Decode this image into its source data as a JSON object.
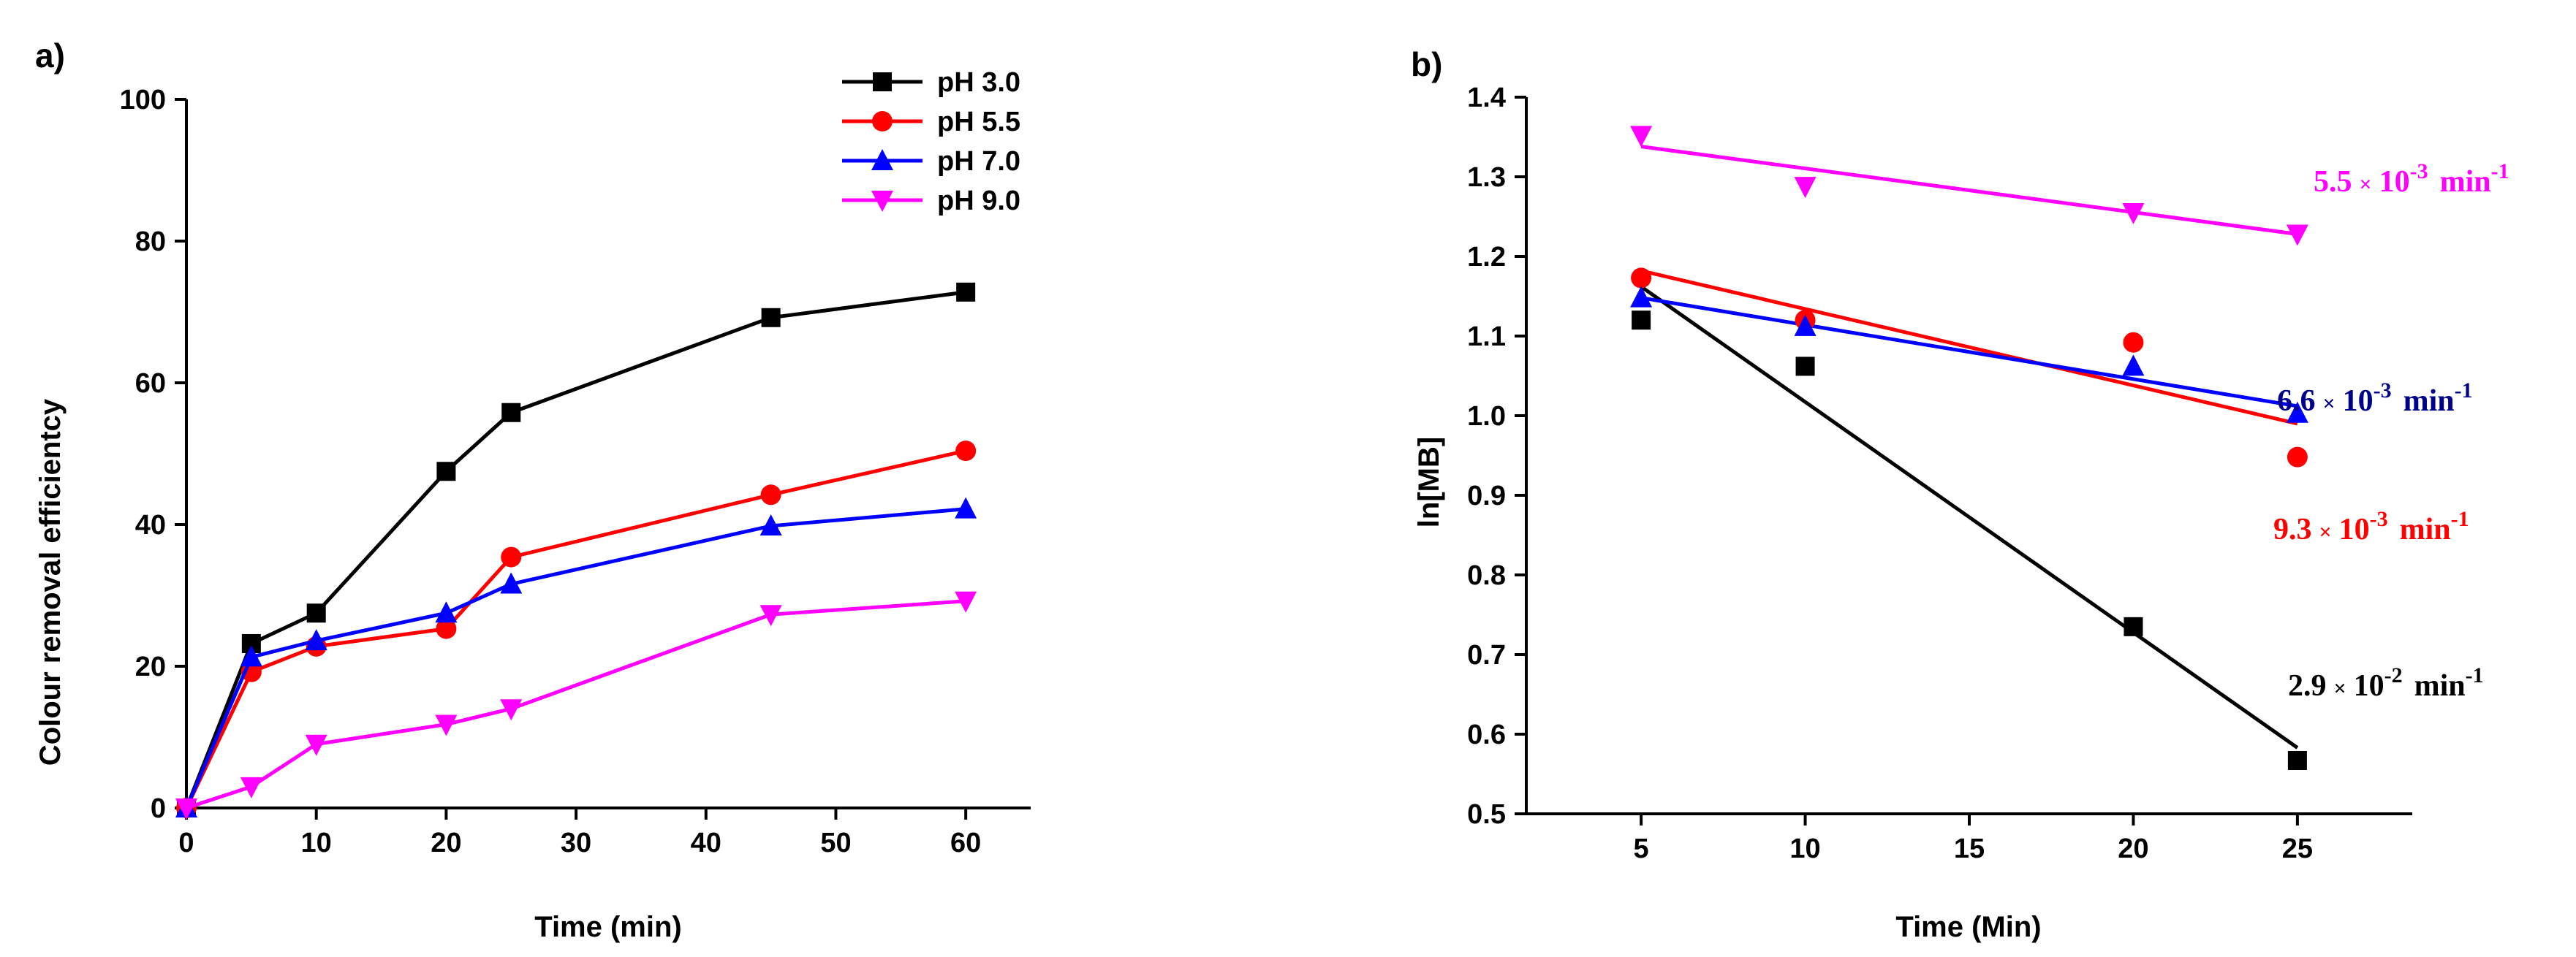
{
  "chart_data": [
    {
      "panel_label": "a)",
      "type": "line",
      "xlabel": "Time (min)",
      "ylabel": "Colour removal efficientcy",
      "xlim": [
        0,
        65
      ],
      "ylim": [
        0,
        100
      ],
      "xticks": [
        0,
        10,
        20,
        30,
        40,
        50,
        60
      ],
      "yticks": [
        0,
        20,
        40,
        60,
        80,
        100
      ],
      "legend_position": "top-right",
      "series": [
        {
          "name": "pH 3.0",
          "color": "#000000",
          "marker": "square",
          "x": [
            0,
            5,
            10,
            20,
            25,
            45,
            60
          ],
          "y": [
            0,
            23.2,
            27.5,
            47.5,
            55.8,
            69.2,
            72.8
          ]
        },
        {
          "name": "pH 5.5",
          "color": "#ff0000",
          "marker": "circle",
          "x": [
            0,
            5,
            10,
            20,
            25,
            45,
            60
          ],
          "y": [
            0,
            19.2,
            22.8,
            25.3,
            35.4,
            44.2,
            50.4
          ]
        },
        {
          "name": "pH 7.0",
          "color": "#0000ff",
          "marker": "triangle-up",
          "x": [
            0,
            5,
            10,
            20,
            25,
            45,
            60
          ],
          "y": [
            0,
            21.3,
            23.6,
            27.5,
            31.6,
            39.8,
            42.2
          ]
        },
        {
          "name": "pH 9.0",
          "color": "#ff00ff",
          "marker": "triangle-down",
          "x": [
            0,
            5,
            10,
            20,
            25,
            45,
            60
          ],
          "y": [
            0,
            3.0,
            9.0,
            11.8,
            14.0,
            27.3,
            29.2
          ]
        }
      ]
    },
    {
      "panel_label": "b)",
      "type": "scatter",
      "xlabel": "Time (Min)",
      "ylabel": "ln[MB]",
      "xlim": [
        1.5,
        28.5
      ],
      "ylim": [
        0.5,
        1.4
      ],
      "xticks": [
        5,
        10,
        15,
        20,
        25
      ],
      "yticks": [
        0.5,
        0.6,
        0.7,
        0.8,
        0.9,
        1.0,
        1.1,
        1.2,
        1.3,
        1.4
      ],
      "ytick_labels": [
        "0.5",
        "0.6",
        "0.7",
        "0.8",
        "0.9",
        "1.0",
        "1.1",
        "1.2",
        "1.3",
        "1.4"
      ],
      "series": [
        {
          "name": "pH 3.0",
          "color": "#000000",
          "marker": "square",
          "x": [
            5,
            10,
            20,
            25
          ],
          "y": [
            1.12,
            1.062,
            0.735,
            0.567
          ],
          "fit": {
            "x": [
              5,
              25
            ],
            "y": [
              1.162,
              0.583
            ]
          }
        },
        {
          "name": "pH 5.5",
          "color": "#ff0000",
          "marker": "circle",
          "x": [
            5,
            10,
            20,
            25
          ],
          "y": [
            1.173,
            1.12,
            1.092,
            0.948
          ],
          "fit": {
            "x": [
              5,
              25
            ],
            "y": [
              1.182,
              0.99
            ]
          }
        },
        {
          "name": "pH 7.0",
          "color": "#0000ff",
          "marker": "triangle-up",
          "x": [
            5,
            10,
            20,
            25
          ],
          "y": [
            1.148,
            1.112,
            1.062,
            1.003
          ],
          "fit": {
            "x": [
              5,
              25
            ],
            "y": [
              1.148,
              1.012
            ]
          }
        },
        {
          "name": "pH 9.0",
          "color": "#ff00ff",
          "marker": "triangle-down",
          "x": [
            5,
            10,
            20,
            25
          ],
          "y": [
            1.352,
            1.288,
            1.255,
            1.228
          ],
          "fit": {
            "x": [
              5,
              25
            ],
            "y": [
              1.338,
              1.228
            ]
          }
        }
      ],
      "annotations": [
        {
          "id": "k-ph9",
          "color": "#ff00ff",
          "coef": "5.5",
          "times": "×",
          "base": "10",
          "exp": "-3",
          "unit": "min",
          "unit_exp": "-1"
        },
        {
          "id": "k-ph7",
          "color": "#00008b",
          "coef": "6.6",
          "times": "×",
          "base": "10",
          "exp": "-3",
          "unit": "min",
          "unit_exp": "-1"
        },
        {
          "id": "k-ph55",
          "color": "#ff0000",
          "coef": "9.3",
          "times": "×",
          "base": "10",
          "exp": "-3",
          "unit": "min",
          "unit_exp": "-1"
        },
        {
          "id": "k-ph3",
          "color": "#000000",
          "coef": "2.9",
          "times": "×",
          "base": "10",
          "exp": "-2",
          "unit": "min",
          "unit_exp": "-1"
        }
      ]
    }
  ]
}
